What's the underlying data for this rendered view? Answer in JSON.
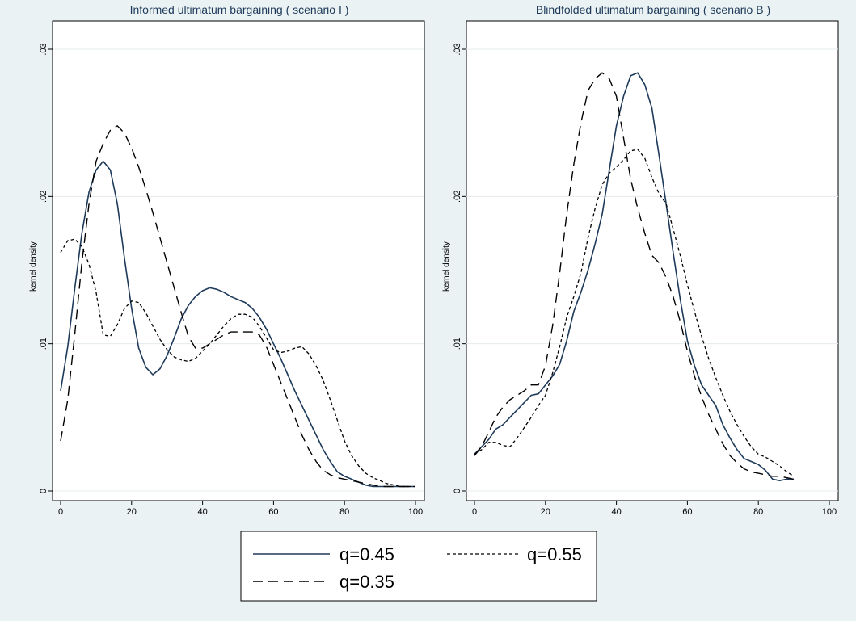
{
  "chart_data": [
    {
      "type": "line",
      "title": "Informed ultimatum bargaining ( scenario I )",
      "xlabel": "",
      "ylabel": "kernel density",
      "xlim": [
        0,
        100
      ],
      "ylim": [
        0,
        0.03
      ],
      "xticks": [
        "0",
        "20",
        "40",
        "60",
        "80",
        "100"
      ],
      "yticks": [
        ".03",
        ".02",
        ".01",
        "0"
      ],
      "grid": true,
      "series": [
        {
          "name": "q=0.45",
          "style": "solid",
          "color": "#1e3a5a",
          "x": [
            0,
            2,
            4,
            6,
            8,
            10,
            12,
            14,
            16,
            18,
            20,
            22,
            24,
            26,
            28,
            30,
            32,
            34,
            36,
            38,
            40,
            42,
            44,
            46,
            48,
            50,
            52,
            54,
            56,
            58,
            60,
            62,
            64,
            66,
            68,
            70,
            72,
            74,
            76,
            78,
            80,
            82,
            84,
            86,
            88,
            90,
            92,
            94,
            96,
            98,
            100
          ],
          "y": [
            0.0068,
            0.0098,
            0.0138,
            0.0175,
            0.0203,
            0.0218,
            0.0224,
            0.0218,
            0.0195,
            0.0158,
            0.0124,
            0.0097,
            0.0084,
            0.0079,
            0.0083,
            0.0092,
            0.0104,
            0.0117,
            0.0126,
            0.0132,
            0.0136,
            0.0138,
            0.0137,
            0.0135,
            0.0132,
            0.013,
            0.0128,
            0.0124,
            0.0118,
            0.011,
            0.01,
            0.009,
            0.0079,
            0.0068,
            0.0058,
            0.0048,
            0.0038,
            0.0028,
            0.002,
            0.0013,
            0.001,
            0.0008,
            0.0006,
            0.0004,
            0.0003,
            0.0003,
            0.0003,
            0.0003,
            0.0003,
            0.0003,
            0.0003
          ]
        },
        {
          "name": "q=0.55",
          "style": "dotted",
          "color": "#000000",
          "x": [
            0,
            2,
            4,
            6,
            8,
            10,
            12,
            14,
            16,
            18,
            20,
            22,
            24,
            26,
            28,
            30,
            32,
            34,
            36,
            38,
            40,
            42,
            44,
            46,
            48,
            50,
            52,
            54,
            56,
            58,
            60,
            62,
            64,
            66,
            68,
            70,
            72,
            74,
            76,
            78,
            80,
            82,
            84,
            86,
            88,
            90,
            92,
            94,
            96,
            98,
            100
          ],
          "y": [
            0.0162,
            0.017,
            0.0171,
            0.0166,
            0.0154,
            0.0135,
            0.0106,
            0.0105,
            0.0113,
            0.0124,
            0.0129,
            0.0128,
            0.0121,
            0.0112,
            0.0103,
            0.0096,
            0.0091,
            0.0089,
            0.0088,
            0.009,
            0.0095,
            0.01,
            0.0106,
            0.0112,
            0.0117,
            0.012,
            0.012,
            0.0118,
            0.0112,
            0.0104,
            0.0096,
            0.0094,
            0.0095,
            0.0097,
            0.0098,
            0.0093,
            0.0085,
            0.0075,
            0.0062,
            0.0048,
            0.0034,
            0.0024,
            0.0017,
            0.0012,
            0.0009,
            0.0007,
            0.0005,
            0.0004,
            0.0003,
            0.0003,
            0.0003
          ]
        },
        {
          "name": "q=0.35",
          "style": "dashed",
          "color": "#000000",
          "x": [
            0,
            2,
            4,
            6,
            8,
            10,
            12,
            14,
            16,
            18,
            20,
            22,
            24,
            26,
            28,
            30,
            32,
            34,
            36,
            38,
            40,
            42,
            44,
            46,
            48,
            50,
            52,
            54,
            56,
            58,
            60,
            62,
            64,
            66,
            68,
            70,
            72,
            74,
            76,
            78,
            80,
            82,
            84,
            86,
            88,
            90,
            92,
            94,
            96,
            98,
            100
          ],
          "y": [
            0.0034,
            0.0062,
            0.0107,
            0.0155,
            0.0195,
            0.0224,
            0.0236,
            0.0245,
            0.0248,
            0.0243,
            0.0233,
            0.022,
            0.0205,
            0.0189,
            0.0172,
            0.0155,
            0.0138,
            0.0121,
            0.0105,
            0.0097,
            0.0097,
            0.01,
            0.0103,
            0.0106,
            0.0108,
            0.0108,
            0.0108,
            0.0108,
            0.0106,
            0.0098,
            0.0086,
            0.0074,
            0.0062,
            0.005,
            0.0038,
            0.0028,
            0.002,
            0.0014,
            0.0011,
            0.0009,
            0.0008,
            0.0007,
            0.0006,
            0.0005,
            0.0004,
            0.0003,
            0.0003,
            0.0003,
            0.0003,
            0.0003,
            0.0003
          ]
        }
      ]
    },
    {
      "type": "line",
      "title": "Blindfolded ultimatum bargaining ( scenario B )",
      "xlabel": "",
      "ylabel": "kernel density",
      "xlim": [
        0,
        100
      ],
      "ylim": [
        0,
        0.03
      ],
      "xticks": [
        "0",
        "20",
        "40",
        "60",
        "80",
        "100"
      ],
      "yticks": [
        ".03",
        ".02",
        ".01",
        "0"
      ],
      "grid": true,
      "series": [
        {
          "name": "q=0.45",
          "style": "solid",
          "color": "#1e3a5a",
          "x": [
            0,
            2,
            4,
            6,
            8,
            10,
            12,
            14,
            16,
            18,
            20,
            22,
            24,
            26,
            28,
            30,
            32,
            34,
            36,
            38,
            40,
            42,
            44,
            46,
            48,
            50,
            52,
            54,
            56,
            58,
            60,
            62,
            64,
            66,
            68,
            70,
            72,
            74,
            76,
            78,
            80,
            82,
            84,
            86,
            88,
            90
          ],
          "y": [
            0.0025,
            0.003,
            0.0035,
            0.0042,
            0.0045,
            0.005,
            0.0055,
            0.006,
            0.0065,
            0.0066,
            0.0072,
            0.0078,
            0.0086,
            0.0102,
            0.0122,
            0.0135,
            0.015,
            0.0168,
            0.0188,
            0.0218,
            0.0248,
            0.0268,
            0.0282,
            0.0284,
            0.0276,
            0.026,
            0.0228,
            0.0195,
            0.0162,
            0.013,
            0.0102,
            0.0085,
            0.0072,
            0.0065,
            0.0058,
            0.0045,
            0.0036,
            0.0028,
            0.0022,
            0.002,
            0.0018,
            0.0014,
            0.0008,
            0.0007,
            0.0008,
            0.0008
          ]
        },
        {
          "name": "q=0.55",
          "style": "dotted",
          "color": "#000000",
          "x": [
            0,
            2,
            4,
            6,
            8,
            10,
            12,
            14,
            16,
            18,
            20,
            22,
            24,
            26,
            28,
            30,
            32,
            34,
            36,
            38,
            40,
            42,
            44,
            46,
            48,
            50,
            52,
            54,
            56,
            58,
            60,
            62,
            64,
            66,
            68,
            70,
            72,
            74,
            76,
            78,
            80,
            82,
            84,
            86,
            88,
            90
          ],
          "y": [
            0.0025,
            0.0028,
            0.0033,
            0.0033,
            0.0031,
            0.003,
            0.0036,
            0.0043,
            0.005,
            0.0058,
            0.0065,
            0.008,
            0.0098,
            0.0118,
            0.0132,
            0.0148,
            0.0172,
            0.0192,
            0.0208,
            0.0216,
            0.022,
            0.0225,
            0.0231,
            0.0232,
            0.0226,
            0.0213,
            0.0202,
            0.0195,
            0.0178,
            0.016,
            0.014,
            0.0122,
            0.0105,
            0.009,
            0.0077,
            0.0065,
            0.0054,
            0.0045,
            0.0037,
            0.003,
            0.0025,
            0.0023,
            0.002,
            0.0017,
            0.0013,
            0.001
          ]
        },
        {
          "name": "q=0.35",
          "style": "dashed",
          "color": "#000000",
          "x": [
            0,
            2,
            4,
            6,
            8,
            10,
            12,
            14,
            16,
            18,
            20,
            22,
            24,
            26,
            28,
            30,
            32,
            34,
            36,
            38,
            40,
            42,
            44,
            46,
            48,
            50,
            52,
            54,
            56,
            58,
            60,
            62,
            64,
            66,
            68,
            70,
            72,
            74,
            76,
            78,
            80,
            82,
            84,
            86,
            88,
            90
          ],
          "y": [
            0.0024,
            0.003,
            0.004,
            0.005,
            0.0057,
            0.0062,
            0.0065,
            0.0068,
            0.0072,
            0.0072,
            0.0085,
            0.0112,
            0.0148,
            0.0188,
            0.0222,
            0.025,
            0.0272,
            0.028,
            0.0284,
            0.028,
            0.0268,
            0.024,
            0.0212,
            0.0192,
            0.0175,
            0.016,
            0.0155,
            0.0145,
            0.0132,
            0.0115,
            0.0095,
            0.0078,
            0.0064,
            0.0052,
            0.0042,
            0.0032,
            0.0024,
            0.0019,
            0.0015,
            0.0013,
            0.0012,
            0.0011,
            0.001,
            0.001,
            0.0009,
            0.0008
          ]
        }
      ]
    }
  ],
  "legend": {
    "placement": "bottom",
    "items": [
      {
        "label": "q=0.45",
        "style": "solid",
        "color": "#1e3a5a"
      },
      {
        "label": "q=0.55",
        "style": "dotted",
        "color": "#000000"
      },
      {
        "label": "q=0.35",
        "style": "dashed",
        "color": "#000000"
      }
    ]
  },
  "colors": {
    "background": "#eaf2f3",
    "plot_background": "#ffffff",
    "grid": "#e4ecee",
    "title": "#1e3a5a"
  }
}
